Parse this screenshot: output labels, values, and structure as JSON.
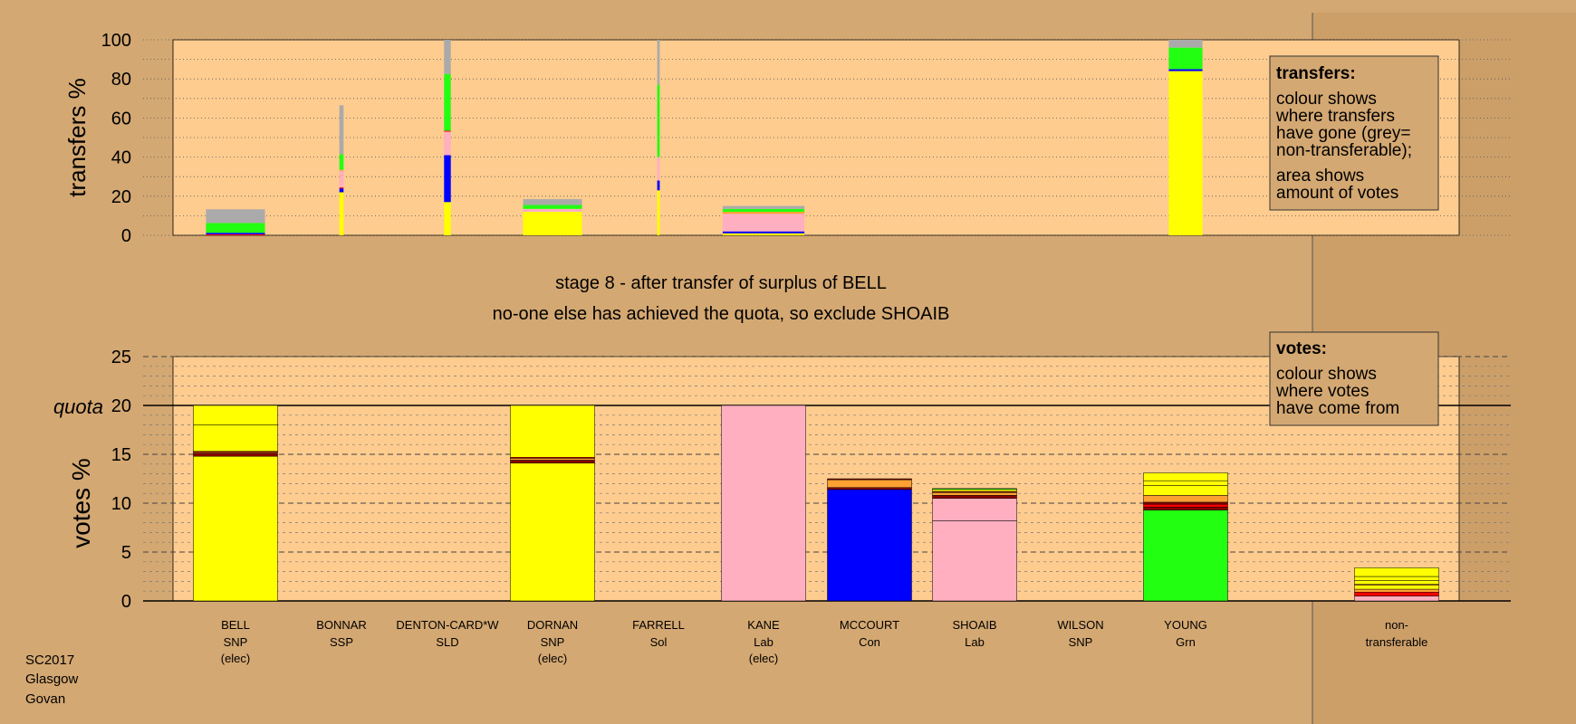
{
  "colors": {
    "background": "#d4a872",
    "plot_fill": "#fecc8f",
    "SNP": "#ffff00",
    "Lab": "#ffafc0",
    "Con": "#0000ff",
    "Grn": "#22ff11",
    "SSP": "#ff0000",
    "SLD": "#ffa033",
    "Sol": "#8b0000",
    "nontransferable": "#aaaaaa"
  },
  "texts": {
    "stage_title": "stage 8 - after transfer of surplus of BELL",
    "stage_subtitle": "no-one else has achieved the quota, so exclude SHOAIB",
    "quota_label": "quota",
    "footer": [
      "SC2017",
      "Glasgow",
      "Govan"
    ]
  },
  "legend_transfers": {
    "title": "transfers:",
    "lines1": [
      "colour shows",
      "where transfers",
      "have gone (grey=",
      "non-transferable);"
    ],
    "lines2": [
      "area shows",
      "amount of votes"
    ]
  },
  "legend_votes": {
    "title": "votes:",
    "lines1": [
      "colour shows",
      "where votes",
      "have come from"
    ]
  },
  "candidates": [
    {
      "name": "BELL",
      "party": "SNP",
      "status": "(elec)"
    },
    {
      "name": "BONNAR",
      "party": "SSP",
      "status": ""
    },
    {
      "name": "DENTON-CARD*W",
      "party": "SLD",
      "status": ""
    },
    {
      "name": "DORNAN",
      "party": "SNP",
      "status": "(elec)"
    },
    {
      "name": "FARRELL",
      "party": "Sol",
      "status": ""
    },
    {
      "name": "KANE",
      "party": "Lab",
      "status": "(elec)"
    },
    {
      "name": "MCCOURT",
      "party": "Con",
      "status": ""
    },
    {
      "name": "SHOAIB",
      "party": "Lab",
      "status": ""
    },
    {
      "name": "WILSON",
      "party": "SNP",
      "status": ""
    },
    {
      "name": "YOUNG",
      "party": "Grn",
      "status": ""
    }
  ],
  "nontransferable_label": [
    "non-",
    "transferable"
  ],
  "chart_data": [
    {
      "type": "bar",
      "stacked": true,
      "ylabel": "transfers %",
      "ylim": [
        0,
        100
      ],
      "yticks": [
        0,
        20,
        40,
        60,
        80,
        100
      ],
      "grid": "dotted",
      "categories": [
        "BELL",
        "BONNAR",
        "DENTON-CARD*W",
        "DORNAN",
        "FARRELL",
        "KANE",
        "MCCOURT",
        "SHOAIB",
        "WILSON",
        "YOUNG"
      ],
      "bars": [
        {
          "category": "BELL",
          "width": 0.7,
          "segments": [
            {
              "party": "SSP",
              "value": 0.5
            },
            {
              "party": "Con",
              "value": 0.8
            },
            {
              "party": "Grn",
              "value": 5.0
            },
            {
              "party": "nontransferable",
              "value": 7.0
            }
          ]
        },
        {
          "category": "BONNAR",
          "width": 0.05,
          "segments": [
            {
              "party": "SNP",
              "value": 22
            },
            {
              "party": "Con",
              "value": 2
            },
            {
              "party": "SSP",
              "value": 0.5
            },
            {
              "party": "Lab",
              "value": 8.5
            },
            {
              "party": "SLD",
              "value": 0.5
            },
            {
              "party": "Grn",
              "value": 8
            },
            {
              "party": "nontransferable",
              "value": 25
            }
          ]
        },
        {
          "category": "DENTON-CARD*W",
          "width": 0.08,
          "segments": [
            {
              "party": "SNP",
              "value": 17
            },
            {
              "party": "Con",
              "value": 24
            },
            {
              "party": "Lab",
              "value": 12
            },
            {
              "party": "SSP",
              "value": 0.5
            },
            {
              "party": "Grn",
              "value": 29
            },
            {
              "party": "nontransferable",
              "value": 17.5
            }
          ]
        },
        {
          "category": "DORNAN",
          "width": 0.7,
          "segments": [
            {
              "party": "SNP",
              "value": 12
            },
            {
              "party": "Lab",
              "value": 1.5
            },
            {
              "party": "Grn",
              "value": 2
            },
            {
              "party": "nontransferable",
              "value": 3
            }
          ]
        },
        {
          "category": "FARRELL",
          "width": 0.03,
          "segments": [
            {
              "party": "SNP",
              "value": 23
            },
            {
              "party": "Con",
              "value": 5
            },
            {
              "party": "Lab",
              "value": 12
            },
            {
              "party": "Grn",
              "value": 37
            },
            {
              "party": "nontransferable",
              "value": 23
            }
          ]
        },
        {
          "category": "KANE",
          "width": 0.97,
          "segments": [
            {
              "party": "SNP",
              "value": 1
            },
            {
              "party": "Con",
              "value": 1
            },
            {
              "party": "Lab",
              "value": 9
            },
            {
              "party": "SLD",
              "value": 1
            },
            {
              "party": "Grn",
              "value": 1.5
            },
            {
              "party": "nontransferable",
              "value": 1.5
            }
          ]
        },
        {
          "category": "YOUNG",
          "width": 0.4,
          "segments": [
            {
              "party": "SNP",
              "value": 84
            },
            {
              "party": "Con",
              "value": 1
            },
            {
              "party": "Grn",
              "value": 11
            },
            {
              "party": "nontransferable",
              "value": 4
            }
          ]
        }
      ]
    },
    {
      "type": "bar",
      "stacked": true,
      "ylabel": "votes %",
      "ylim": [
        0,
        25
      ],
      "yticks": [
        0,
        5,
        10,
        15,
        20,
        25
      ],
      "quota": 20,
      "grid": "dashed",
      "categories": [
        "BELL",
        "BONNAR",
        "DENTON-CARD*W",
        "DORNAN",
        "FARRELL",
        "KANE",
        "MCCOURT",
        "SHOAIB",
        "WILSON",
        "YOUNG",
        "non-transferable"
      ],
      "bars": [
        {
          "category": "BELL",
          "segments": [
            {
              "party": "SNP",
              "value": 14.8
            },
            {
              "party": "Sol",
              "value": 0.3
            },
            {
              "party": "SLD",
              "value": 0.1
            },
            {
              "party": "SSP",
              "value": 0.1
            },
            {
              "party": "SNP",
              "value": 2.7
            },
            {
              "party": "SNP",
              "value": 2.0
            }
          ]
        },
        {
          "category": "DORNAN",
          "segments": [
            {
              "party": "SNP",
              "value": 14.1
            },
            {
              "party": "Sol",
              "value": 0.3
            },
            {
              "party": "SLD",
              "value": 0.2
            },
            {
              "party": "SSP",
              "value": 0.1
            },
            {
              "party": "SNP",
              "value": 5.3
            }
          ]
        },
        {
          "category": "KANE",
          "segments": [
            {
              "party": "Lab",
              "value": 20
            }
          ]
        },
        {
          "category": "MCCOURT",
          "segments": [
            {
              "party": "Con",
              "value": 11.4
            },
            {
              "party": "Sol",
              "value": 0.1
            },
            {
              "party": "SSP",
              "value": 0.1
            },
            {
              "party": "SLD",
              "value": 0.8
            },
            {
              "party": "Sol",
              "value": 0.1
            }
          ]
        },
        {
          "category": "SHOAIB",
          "segments": [
            {
              "party": "Lab",
              "value": 8.2
            },
            {
              "party": "Lab",
              "value": 2.3
            },
            {
              "party": "Sol",
              "value": 0.3
            },
            {
              "party": "SLD",
              "value": 0.3
            },
            {
              "party": "Sol",
              "value": 0.1
            },
            {
              "party": "SNP",
              "value": 0.2
            },
            {
              "party": "Grn",
              "value": 0.1
            }
          ]
        },
        {
          "category": "YOUNG",
          "segments": [
            {
              "party": "Grn",
              "value": 9.3
            },
            {
              "party": "Sol",
              "value": 0.3
            },
            {
              "party": "SSP",
              "value": 0.3
            },
            {
              "party": "Sol",
              "value": 0.2
            },
            {
              "party": "SLD",
              "value": 0.7
            },
            {
              "party": "SNP",
              "value": 1.0
            },
            {
              "party": "SNP",
              "value": 0.5
            },
            {
              "party": "SNP",
              "value": 0.8
            }
          ]
        },
        {
          "category": "non-transferable",
          "segments": [
            {
              "party": "Lab",
              "value": 0.5
            },
            {
              "party": "SSP",
              "value": 0.4
            },
            {
              "party": "SLD",
              "value": 0.3
            },
            {
              "party": "SNP",
              "value": 0.4
            },
            {
              "party": "SLD",
              "value": 0.1
            },
            {
              "party": "SNP",
              "value": 0.4
            },
            {
              "party": "SNP",
              "value": 0.4
            },
            {
              "party": "SNP",
              "value": 0.9
            }
          ]
        }
      ]
    }
  ]
}
